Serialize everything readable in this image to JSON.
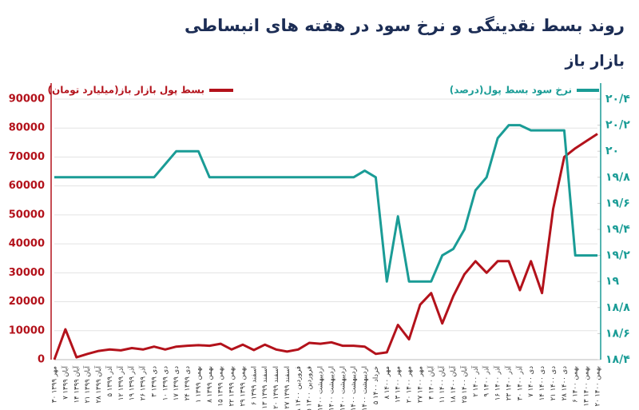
{
  "chart_data": {
    "type": "line",
    "title": "روند بسط نقدینگی و نرخ سود در هفته های انبساطی",
    "subtitle": "بازار باز",
    "categories": [
      "۳۰ مهر ۱۳۹۹",
      "۷ آبان ۱۳۹۹",
      "۱۴ آبان ۱۳۹۹",
      "۲۱ آبان ۱۳۹۹",
      "۲۸ آبان ۱۳۹۹",
      "۵ آذر ۱۳۹۹",
      "۱۲ آذر ۱۳۹۹",
      "۱۹ آذر ۱۳۹۹",
      "۲۶ آذر ۱۳۹۹",
      "۳ دی ۱۳۹۹",
      "۱۰ دی ۱۳۹۹",
      "۱۷ دی ۱۳۹۹",
      "۲۴ دی ۱۳۹۹",
      "۱ بهمن ۱۳۹۹",
      "۸ بهمن ۱۳۹۹",
      "۱۵ بهمن ۱۳۹۹",
      "۲۲ بهمن ۱۳۹۹",
      "۲۹ بهمن ۱۳۹۹",
      "۶ اسفند ۱۳۹۹",
      "۱۳ اسفند ۱۳۹۹",
      "۲۰ اسفند ۱۳۹۹",
      "۲۷ اسفند ۱۳۹۹",
      "۱۸ فروردین ۱۴۰۰",
      "۲۵ فروردین ۱۴۰۰",
      "۱ اردیبهشت ۱۴۰۰",
      "۸ اردیبهشت ۱۴۰۰",
      "۱۵ اردیبهشت ۱۴۰۰",
      "۲۲ اردیبهشت ۱۴۰۰",
      "۲۹ اردیبهشت ۱۴۰۰",
      "۵ خرداد ۱۴۰۰",
      "۸ مهر ۱۴۰۰",
      "۱۳ مهر ۱۴۰۰",
      "۲۰ مهر ۱۴۰۰",
      "۲۷ مهر ۱۴۰۰",
      "۴ آبان ۱۴۰۰",
      "۱۱ آبان ۱۴۰۰",
      "۱۸ آبان ۱۴۰۰",
      "۲۵ آبان ۱۴۰۰",
      "۲ آذر ۱۴۰۰",
      "۹ آذر ۱۴۰۰",
      "۱۶ آذر ۱۴۰۰",
      "۲۳ آذر ۱۴۰۰",
      "۳۰ آذر ۱۴۰۰",
      "۷ دی ۱۴۰۰",
      "۱۴ دی ۱۴۰۰",
      "۲۱ دی ۱۴۰۰",
      "۲۸ دی ۱۴۰۰",
      "۶ بهمن ۱۴۰۰",
      "۱۳ بهمن ۱۴۰۰",
      "۲۰ بهمن ۱۴۰۰"
    ],
    "series": [
      {
        "name": "بسط پول بازار باز(میلیارد تومان)",
        "color": "#b3121b",
        "axis": "y",
        "values": [
          0,
          10500,
          800,
          2000,
          3000,
          3500,
          3200,
          4000,
          3500,
          4500,
          3500,
          4500,
          4800,
          5000,
          4800,
          5500,
          3500,
          5200,
          3300,
          5200,
          3500,
          2800,
          3500,
          5800,
          5500,
          6000,
          4800,
          4800,
          4500,
          2000,
          2500,
          12000,
          7000,
          19000,
          23000,
          12500,
          22000,
          29500,
          34000,
          30000,
          34000,
          34000,
          24000,
          34000,
          23000,
          52000,
          70000,
          73000,
          75500,
          78000
        ]
      },
      {
        "name": "نرخ سود بسط پول(درصد)",
        "color": "#1a9c96",
        "axis": "y2",
        "values": [
          19.8,
          19.8,
          19.8,
          19.8,
          19.8,
          19.8,
          19.8,
          19.8,
          19.8,
          19.8,
          19.9,
          20.0,
          20.0,
          20.0,
          19.8,
          19.8,
          19.8,
          19.8,
          19.8,
          19.8,
          19.8,
          19.8,
          19.8,
          19.8,
          19.8,
          19.8,
          19.8,
          19.8,
          19.85,
          19.8,
          19.0,
          19.5,
          19.0,
          19.0,
          19.0,
          19.2,
          19.25,
          19.4,
          19.7,
          19.8,
          20.1,
          20.2,
          20.2,
          20.16,
          20.16,
          20.16,
          20.16,
          19.2,
          19.2,
          19.2
        ]
      }
    ],
    "ylim": [
      0,
      90000
    ],
    "yticks": [
      0,
      10000,
      20000,
      30000,
      40000,
      50000,
      60000,
      70000,
      80000,
      90000
    ],
    "y2lim": [
      18.4,
      20.4
    ],
    "y2ticks": [
      {
        "value": 18.4,
        "label": "۱۸/۴"
      },
      {
        "value": 18.6,
        "label": "۱۸/۶"
      },
      {
        "value": 18.8,
        "label": "۱۸/۸"
      },
      {
        "value": 19,
        "label": "۱۹"
      },
      {
        "value": 19.2,
        "label": "۱۹/۲"
      },
      {
        "value": 19.4,
        "label": "۱۹/۴"
      },
      {
        "value": 19.6,
        "label": "۱۹/۶"
      },
      {
        "value": 19.8,
        "label": "۱۹/۸"
      },
      {
        "value": 20,
        "label": "۲۰"
      },
      {
        "value": 20.2,
        "label": "۲۰/۲"
      },
      {
        "value": 20.4,
        "label": "۲۰/۴"
      }
    ],
    "grid": true
  }
}
